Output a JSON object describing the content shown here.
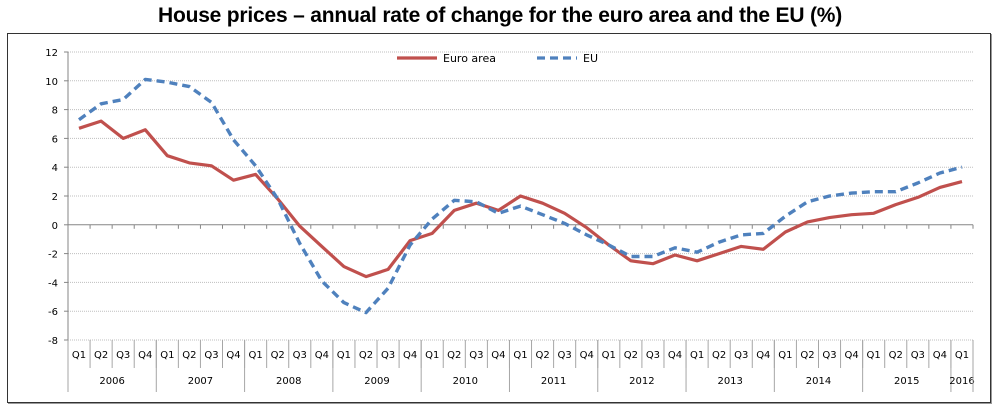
{
  "chart_data": {
    "type": "line",
    "title": "House prices – annual rate of change for the euro area and the EU (%)",
    "xlabel": "",
    "ylabel": "",
    "ylim": [
      -8,
      12
    ],
    "yticks": [
      "12",
      "10",
      "8",
      "6",
      "4",
      "2",
      "0",
      "-2",
      "-4",
      "-6",
      "-8"
    ],
    "ytick_values": [
      12,
      10,
      8,
      6,
      4,
      2,
      0,
      -2,
      -4,
      -6,
      -8
    ],
    "grid": true,
    "legend_position": "top-center",
    "quarters": [
      "Q1",
      "Q2",
      "Q3",
      "Q4",
      "Q1",
      "Q2",
      "Q3",
      "Q4",
      "Q1",
      "Q2",
      "Q3",
      "Q4",
      "Q1",
      "Q2",
      "Q3",
      "Q4",
      "Q1",
      "Q2",
      "Q3",
      "Q4",
      "Q1",
      "Q2",
      "Q3",
      "Q4",
      "Q1",
      "Q2",
      "Q3",
      "Q4",
      "Q1",
      "Q2",
      "Q3",
      "Q4",
      "Q1",
      "Q2",
      "Q3",
      "Q4",
      "Q1",
      "Q2",
      "Q3",
      "Q4",
      "Q1"
    ],
    "years": [
      {
        "label": "2006",
        "count": 4
      },
      {
        "label": "2007",
        "count": 4
      },
      {
        "label": "2008",
        "count": 4
      },
      {
        "label": "2009",
        "count": 4
      },
      {
        "label": "2010",
        "count": 4
      },
      {
        "label": "2011",
        "count": 4
      },
      {
        "label": "2012",
        "count": 4
      },
      {
        "label": "2013",
        "count": 4
      },
      {
        "label": "2014",
        "count": 4
      },
      {
        "label": "2015",
        "count": 4
      },
      {
        "label": "2016",
        "count": 1
      }
    ],
    "series": [
      {
        "name": "Euro area",
        "color": "#c0504d",
        "style": "solid",
        "values": [
          6.7,
          7.2,
          6.0,
          6.6,
          4.8,
          4.3,
          4.1,
          3.1,
          3.5,
          1.8,
          -0.1,
          -1.5,
          -2.9,
          -3.6,
          -3.1,
          -1.1,
          -0.6,
          1.0,
          1.5,
          1.0,
          2.0,
          1.5,
          0.8,
          -0.2,
          -1.4,
          -2.5,
          -2.7,
          -2.1,
          -2.5,
          -2.0,
          -1.5,
          -1.7,
          -0.5,
          0.2,
          0.5,
          0.7,
          0.8,
          1.4,
          1.9,
          2.6,
          3.0
        ]
      },
      {
        "name": "EU",
        "color": "#4f81bd",
        "style": "dashed",
        "values": [
          7.3,
          8.4,
          8.7,
          10.1,
          9.9,
          9.6,
          8.5,
          5.9,
          4.1,
          1.8,
          -1.3,
          -3.9,
          -5.4,
          -6.1,
          -4.4,
          -1.4,
          0.4,
          1.7,
          1.6,
          0.8,
          1.3,
          0.7,
          0.1,
          -0.7,
          -1.4,
          -2.2,
          -2.2,
          -1.6,
          -1.9,
          -1.2,
          -0.7,
          -0.6,
          0.6,
          1.6,
          2.0,
          2.2,
          2.3,
          2.3,
          2.9,
          3.6,
          4.0
        ]
      }
    ]
  }
}
